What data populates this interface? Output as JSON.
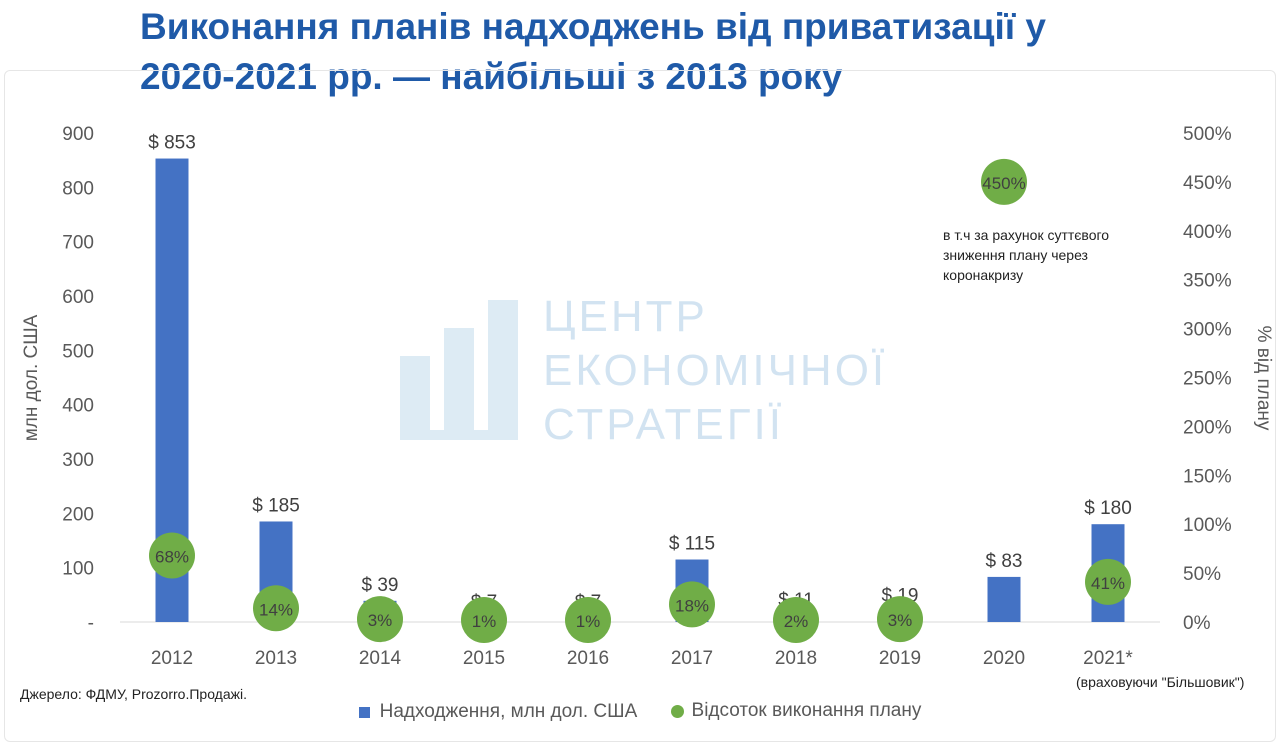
{
  "title": "Виконання планів надходжень від приватизації у 2020-2021 рр. — найбільші з 2013 року",
  "source": "Джерело: ФДМУ, Prozorro.Продажі.",
  "note_2021": "(враховуючи \"Більшовик\")",
  "annotation": "в т.ч за рахунок суттєвого зниження плану через коронакризу",
  "watermark": {
    "line1": "ЦЕНТР",
    "line2": "ЕКОНОМІЧНОЇ",
    "line3": "СТРАТЕГІЇ"
  },
  "legend": {
    "bars": "Надходження, млн дол. США",
    "dots": "Відсоток виконання плану"
  },
  "colors": {
    "bar": "#4472c4",
    "dot": "#70ad47",
    "title": "#1f5aa8"
  },
  "chart_data": {
    "type": "bar",
    "categories": [
      "2012",
      "2013",
      "2014",
      "2015",
      "2016",
      "2017",
      "2018",
      "2019",
      "2020",
      "2021*"
    ],
    "series": [
      {
        "name": "Надходження, млн дол. США",
        "axis": "left",
        "values": [
          853,
          185,
          39,
          7,
          7,
          115,
          11,
          19,
          83,
          180
        ],
        "labels": [
          "$ 853",
          "$ 185",
          "$ 39",
          "$ 7",
          "$ 7",
          "$ 115",
          "$ 11",
          "$ 19",
          "$ 83",
          "$ 180"
        ]
      },
      {
        "name": "Відсоток виконання плану",
        "axis": "right",
        "marker": "circle",
        "values": [
          68,
          14,
          3,
          1,
          1,
          18,
          2,
          3,
          450,
          41
        ],
        "labels": [
          "68%",
          "14%",
          "3%",
          "1%",
          "1%",
          "18%",
          "2%",
          "3%",
          "450%",
          "41%"
        ]
      }
    ],
    "ylabel": "млн дол. США",
    "y2label": "% від плану",
    "ylim": [
      0,
      900
    ],
    "y2lim": [
      0,
      500
    ],
    "yticks": [
      "-",
      "100",
      "200",
      "300",
      "400",
      "500",
      "600",
      "700",
      "800",
      "900"
    ],
    "y2ticks": [
      "0%",
      "50%",
      "100%",
      "150%",
      "200%",
      "250%",
      "300%",
      "350%",
      "400%",
      "450%",
      "500%"
    ]
  }
}
